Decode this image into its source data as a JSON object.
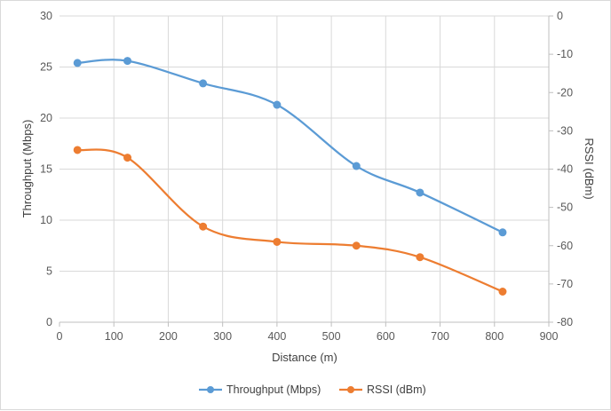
{
  "chart_data": {
    "type": "line",
    "title": "",
    "xlabel": "Distance (m)",
    "ylabel": "Throughput (Mbps)",
    "y2label": "RSSI (dBm)",
    "xlim": [
      0,
      900
    ],
    "ylim": [
      0,
      30
    ],
    "y2lim": [
      -80,
      0
    ],
    "x_ticks": [
      "0",
      "100",
      "200",
      "300",
      "400",
      "500",
      "600",
      "700",
      "800",
      "900"
    ],
    "y_ticks": [
      "0",
      "5",
      "10",
      "15",
      "20",
      "25",
      "30"
    ],
    "y2_ticks": [
      "0",
      "-10",
      "-20",
      "-30",
      "-40",
      "-50",
      "-60",
      "-70",
      "-80"
    ],
    "grid": true,
    "legend_position": "bottom",
    "series": [
      {
        "name": "Throughput (Mbps)",
        "axis": "left",
        "color": "#5b9bd5",
        "x": [
          33,
          125,
          264,
          400,
          546,
          663,
          815
        ],
        "values": [
          25.4,
          25.6,
          23.4,
          21.3,
          15.3,
          12.7,
          8.8
        ]
      },
      {
        "name": "RSSI (dBm)",
        "axis": "right",
        "color": "#ed7d31",
        "x": [
          33,
          125,
          264,
          400,
          546,
          663,
          815
        ],
        "values": [
          -35,
          -37,
          -55,
          -59,
          -60,
          -63,
          -72
        ]
      }
    ]
  }
}
